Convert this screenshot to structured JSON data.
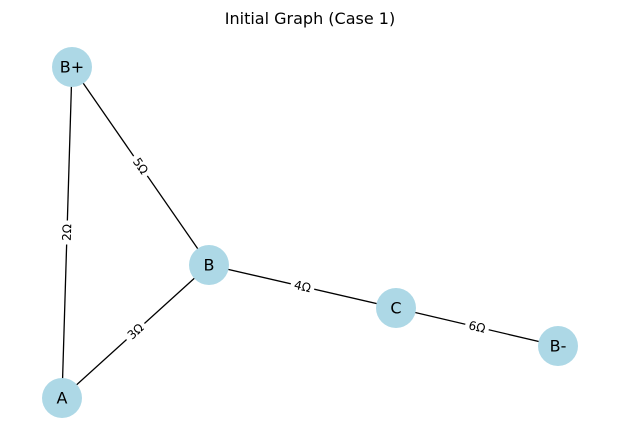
{
  "title": "Initial Graph (Case 1)",
  "colors": {
    "node_fill": "#add8e6",
    "edge": "#000000",
    "label_bg": "#ffffff"
  },
  "nodes": [
    {
      "id": "B+",
      "label": "B+"
    },
    {
      "id": "B",
      "label": "B"
    },
    {
      "id": "A",
      "label": "A"
    },
    {
      "id": "C",
      "label": "C"
    },
    {
      "id": "B-",
      "label": "B-"
    }
  ],
  "edges": [
    {
      "source": "B+",
      "target": "B",
      "label": "5Ω"
    },
    {
      "source": "B+",
      "target": "A",
      "label": "2Ω"
    },
    {
      "source": "B",
      "target": "A",
      "label": "3Ω"
    },
    {
      "source": "B",
      "target": "C",
      "label": "4Ω"
    },
    {
      "source": "C",
      "target": "B-",
      "label": "6Ω"
    }
  ]
}
